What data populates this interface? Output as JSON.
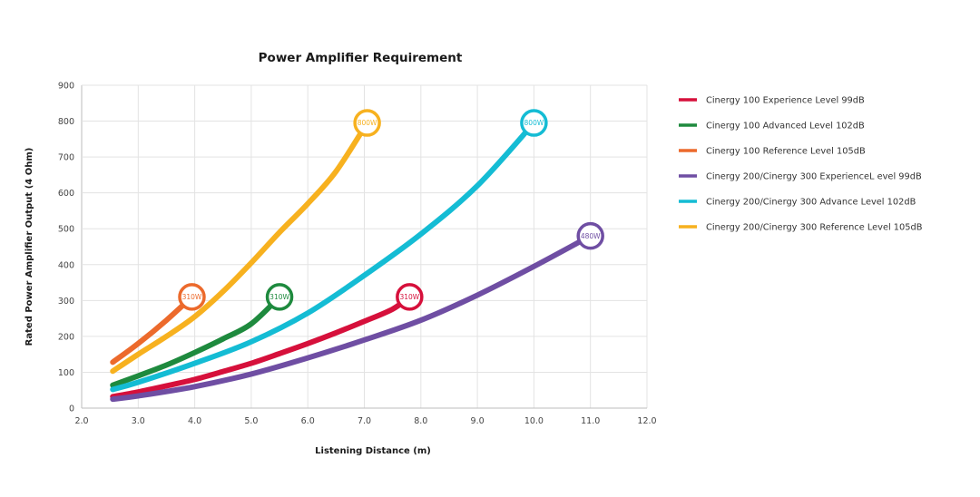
{
  "chart_data": {
    "type": "line",
    "title": "Power Amplifier Requirement",
    "xlabel": "Listening Distance (m)",
    "ylabel": "Rated Power Amplifier Output (4 Ohm)",
    "xlim": [
      2.0,
      12.0
    ],
    "ylim": [
      0,
      900
    ],
    "xticks": [
      "2.0",
      "3.0",
      "4.0",
      "5.0",
      "6.0",
      "7.0",
      "8.0",
      "9.0",
      "10.0",
      "11.0",
      "12.0"
    ],
    "yticks": [
      "0",
      "100",
      "200",
      "300",
      "400",
      "500",
      "600",
      "700",
      "800",
      "900"
    ],
    "grid": true,
    "legend_position": "right",
    "series": [
      {
        "name": "Cinergy 100 Experience Level 99dB",
        "color": "#d6103b",
        "x": [
          2.55,
          3.0,
          3.5,
          4.0,
          4.5,
          5.0,
          5.5,
          6.0,
          6.5,
          7.0,
          7.5,
          7.8
        ],
        "y": [
          32,
          45,
          62,
          80,
          102,
          125,
          152,
          180,
          210,
          242,
          276,
          310
        ],
        "end_label": "310W"
      },
      {
        "name": "Cinergy 100 Advanced Level 102dB",
        "color": "#1e8a3e",
        "x": [
          2.55,
          3.0,
          3.5,
          4.0,
          4.5,
          5.0,
          5.5
        ],
        "y": [
          64,
          90,
          120,
          155,
          193,
          235,
          310
        ],
        "end_label": "310W"
      },
      {
        "name": "Cinergy 100 Reference Level 105dB",
        "color": "#ec6a2c",
        "x": [
          2.55,
          3.0,
          3.5,
          3.95
        ],
        "y": [
          128,
          180,
          245,
          310
        ],
        "end_label": "310W"
      },
      {
        "name": "Cinergy 200/Cinergy 300 ExperienceL evel 99dB",
        "color": "#6f4ea3",
        "x": [
          2.55,
          3.0,
          4.0,
          5.0,
          6.0,
          7.0,
          8.0,
          9.0,
          10.0,
          11.0
        ],
        "y": [
          25,
          34,
          60,
          95,
          140,
          190,
          245,
          315,
          395,
          480
        ],
        "end_label": "480W"
      },
      {
        "name": "Cinergy 200/Cinergy 300 Advance Level 102dB",
        "color": "#14bcd4",
        "x": [
          2.55,
          3.0,
          4.0,
          5.0,
          6.0,
          7.0,
          8.0,
          9.0,
          10.0
        ],
        "y": [
          52,
          72,
          125,
          185,
          265,
          370,
          485,
          620,
          795
        ],
        "end_label": "800W"
      },
      {
        "name": "Cinergy 200/Cinergy 300 Reference Level 105dB",
        "color": "#f7b11f",
        "x": [
          2.55,
          3.0,
          3.5,
          4.0,
          4.5,
          5.0,
          5.5,
          6.0,
          6.5,
          7.05
        ],
        "y": [
          103,
          150,
          200,
          255,
          325,
          405,
          490,
          570,
          660,
          795
        ],
        "end_label": "800W"
      }
    ]
  }
}
